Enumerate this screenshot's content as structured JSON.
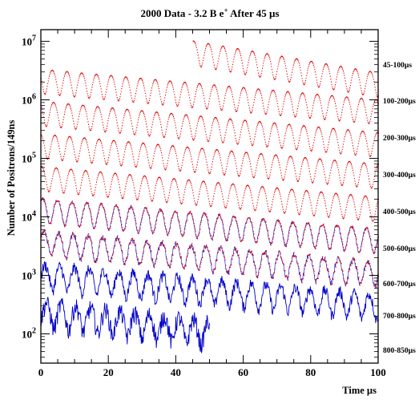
{
  "chart_data": {
    "type": "line",
    "title": {
      "prefix": "2000 Data - 3.2 B e",
      "superscript": "+",
      "suffix": " After 45 µs"
    },
    "xlabel": "Time µs",
    "ylabel": "Number of Positrons/149ns",
    "xlim": [
      0,
      100
    ],
    "y_scale": "log",
    "x_ticks": [
      "0",
      "20",
      "40",
      "60",
      "80",
      "100"
    ],
    "y_ticks": [
      {
        "base": "10",
        "exp": "7"
      },
      {
        "base": "10",
        "exp": "6"
      },
      {
        "base": "10",
        "exp": "5"
      },
      {
        "base": "10",
        "exp": "4"
      },
      {
        "base": "10",
        "exp": "3"
      },
      {
        "base": "10",
        "exp": "2"
      }
    ],
    "colors": {
      "data": "#e00000",
      "fit": "#0000cc"
    },
    "series": [
      {
        "name": "45-100µs",
        "x_start": 45,
        "x_end": 100,
        "t0": 45,
        "y_start": 7000000,
        "y_end": 2000000,
        "mod": 0.45,
        "noise": 0.0,
        "color": "#e00000",
        "style": "dots"
      },
      {
        "name": "100-200µs",
        "x_start": 0,
        "x_end": 100,
        "t0": 100,
        "y_start": 2300000,
        "y_end": 690000,
        "mod": 0.45,
        "noise": 0.0,
        "color": "#e00000",
        "style": "dots"
      },
      {
        "name": "200-300µs",
        "x_start": 0,
        "x_end": 100,
        "t0": 200,
        "y_start": 650000,
        "y_end": 190000,
        "mod": 0.45,
        "noise": 0.0,
        "color": "#e00000",
        "style": "dots"
      },
      {
        "name": "300-400µs",
        "x_start": 0,
        "x_end": 100,
        "t0": 300,
        "y_start": 180000,
        "y_end": 55000,
        "mod": 0.45,
        "noise": 0.0,
        "color": "#e00000",
        "style": "dots"
      },
      {
        "name": "400-500µs",
        "x_start": 0,
        "x_end": 100,
        "t0": 400,
        "y_start": 50000,
        "y_end": 15000,
        "mod": 0.45,
        "noise": 0.0,
        "color": "#e00000",
        "style": "dots"
      },
      {
        "name": "500-600µs",
        "x_start": 0,
        "x_end": 100,
        "t0": 500,
        "y_start": 14000,
        "y_end": 4200,
        "mod": 0.45,
        "noise": 0.04,
        "color": "#e00000",
        "style": "mixed"
      },
      {
        "name": "600-700µs",
        "x_start": 0,
        "x_end": 100,
        "t0": 600,
        "y_start": 3900,
        "y_end": 1150,
        "mod": 0.45,
        "noise": 0.08,
        "color": "#3a10a0",
        "style": "mixed"
      },
      {
        "name": "700-800µs",
        "x_start": 0,
        "x_end": 100,
        "t0": 700,
        "y_start": 1050,
        "y_end": 320,
        "mod": 0.45,
        "noise": 0.16,
        "color": "#0000cc",
        "style": "line"
      },
      {
        "name": "800-850µs",
        "x_start": 0,
        "x_end": 50,
        "t0": 800,
        "y_start": 240,
        "y_end": 115,
        "mod": 0.45,
        "noise": 0.25,
        "color": "#0000cc",
        "style": "line"
      }
    ]
  }
}
